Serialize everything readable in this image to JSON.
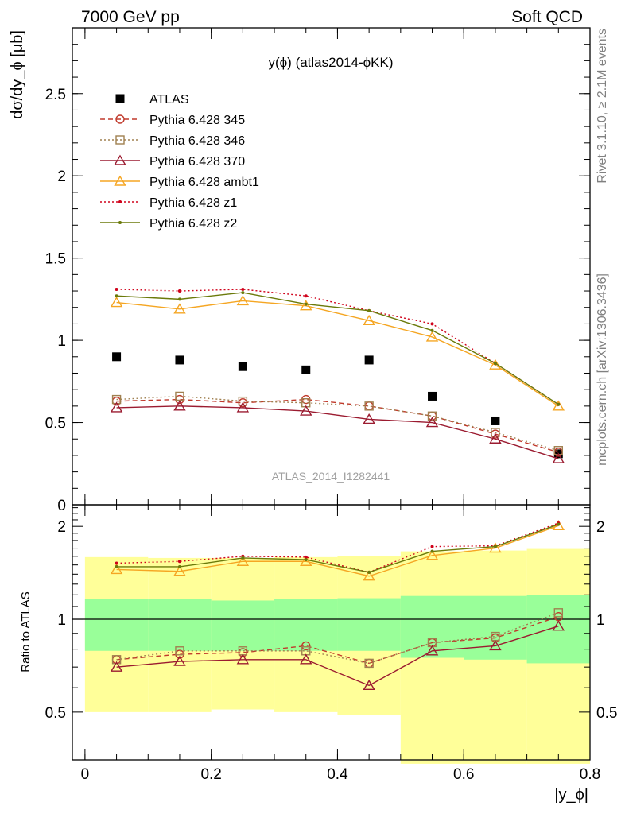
{
  "header": {
    "left": "7000 GeV pp",
    "right": "Soft QCD"
  },
  "side_labels": {
    "rivet": "Rivet 3.1.10, ≥ 2.1M events",
    "mcplots": "mcplots.cern.ch [arXiv:1306.3436]"
  },
  "chart_data": [
    {
      "type": "line",
      "title": "y(ϕ) (atlas2014-ϕKK)",
      "watermark": "ATLAS_2014_I1282441",
      "ylabel": "dσ/dy_ϕ [μb]",
      "xlim": [
        -0.02,
        0.8
      ],
      "ylim": [
        0,
        2.9
      ],
      "yticks": [
        0,
        0.5,
        1,
        1.5,
        2,
        2.5
      ],
      "ytick_labels": [
        "0",
        "0.5",
        "1",
        "1.5",
        "2",
        "2.5"
      ],
      "x": [
        0.05,
        0.15,
        0.25,
        0.35,
        0.45,
        0.55,
        0.65,
        0.75
      ],
      "legend_position": "top-left",
      "series": [
        {
          "name": "ATLAS",
          "color": "#000000",
          "marker": "filled-square",
          "line": "none",
          "values": [
            0.9,
            0.88,
            0.84,
            0.82,
            0.88,
            0.66,
            0.51,
            0.31
          ]
        },
        {
          "name": "Pythia 6.428 345",
          "color": "#c0392b",
          "marker": "open-circle",
          "line": "dashed",
          "values": [
            0.63,
            0.64,
            0.62,
            0.64,
            0.6,
            0.54,
            0.43,
            0.32
          ]
        },
        {
          "name": "Pythia 6.428 346",
          "color": "#a08050",
          "marker": "open-square",
          "line": "dotted",
          "values": [
            0.64,
            0.66,
            0.63,
            0.62,
            0.6,
            0.54,
            0.44,
            0.33
          ]
        },
        {
          "name": "Pythia 6.428 370",
          "color": "#9b1b30",
          "marker": "open-triangle",
          "line": "solid",
          "values": [
            0.59,
            0.6,
            0.59,
            0.57,
            0.52,
            0.5,
            0.4,
            0.28
          ]
        },
        {
          "name": "Pythia 6.428 ambt1",
          "color": "#f5a623",
          "marker": "open-triangle",
          "line": "solid",
          "values": [
            1.23,
            1.19,
            1.24,
            1.21,
            1.12,
            1.02,
            0.85,
            0.6
          ]
        },
        {
          "name": "Pythia 6.428 z1",
          "color": "#d0021b",
          "marker": "dot",
          "line": "dotted",
          "values": [
            1.31,
            1.3,
            1.31,
            1.27,
            1.18,
            1.1,
            0.86,
            0.61
          ]
        },
        {
          "name": "Pythia 6.428 z2",
          "color": "#6b7a0a",
          "marker": "dot",
          "line": "solid",
          "values": [
            1.27,
            1.25,
            1.29,
            1.22,
            1.18,
            1.06,
            0.86,
            0.61
          ]
        }
      ]
    },
    {
      "type": "line",
      "ylabel": "Ratio to ATLAS",
      "xlabel": "|y_ϕ|",
      "xlim": [
        -0.02,
        0.8
      ],
      "ylim": [
        0.35,
        2.35
      ],
      "xticks": [
        0,
        0.2,
        0.4,
        0.6,
        0.8
      ],
      "xtick_labels": [
        "0",
        "0.2",
        "0.4",
        "0.6",
        "0.8"
      ],
      "yticks": [
        0.5,
        1,
        2
      ],
      "ytick_labels": [
        "0.5",
        "1",
        "2"
      ],
      "bin_edges": [
        0.0,
        0.1,
        0.2,
        0.3,
        0.4,
        0.5,
        0.6,
        0.7,
        0.8
      ],
      "band_inner": [
        [
          0.79,
          1.16
        ],
        [
          0.79,
          1.16
        ],
        [
          0.79,
          1.15
        ],
        [
          0.79,
          1.16
        ],
        [
          0.79,
          1.17
        ],
        [
          0.75,
          1.19
        ],
        [
          0.74,
          1.19
        ],
        [
          0.72,
          1.2
        ]
      ],
      "band_outer": [
        [
          0.5,
          1.59
        ],
        [
          0.5,
          1.58
        ],
        [
          0.51,
          1.58
        ],
        [
          0.5,
          1.59
        ],
        [
          0.49,
          1.6
        ],
        [
          0.34,
          1.66
        ],
        [
          0.34,
          1.67
        ],
        [
          0.34,
          1.69
        ]
      ],
      "x": [
        0.05,
        0.15,
        0.25,
        0.35,
        0.45,
        0.55,
        0.65,
        0.75
      ],
      "series": [
        {
          "name": "Pythia 6.428 345",
          "values": [
            0.74,
            0.77,
            0.78,
            0.82,
            0.72,
            0.84,
            0.87,
            1.02
          ]
        },
        {
          "name": "Pythia 6.428 346",
          "values": [
            0.74,
            0.79,
            0.79,
            0.79,
            0.72,
            0.84,
            0.88,
            1.05
          ]
        },
        {
          "name": "Pythia 6.428 370",
          "values": [
            0.7,
            0.73,
            0.74,
            0.74,
            0.61,
            0.79,
            0.82,
            0.95
          ]
        },
        {
          "name": "Pythia 6.428 ambt1",
          "values": [
            1.45,
            1.43,
            1.54,
            1.54,
            1.38,
            1.61,
            1.7,
            2.01
          ]
        },
        {
          "name": "Pythia 6.428 z1",
          "values": [
            1.52,
            1.54,
            1.6,
            1.59,
            1.42,
            1.72,
            1.73,
            2.05
          ]
        },
        {
          "name": "Pythia 6.428 z2",
          "values": [
            1.48,
            1.48,
            1.58,
            1.56,
            1.42,
            1.66,
            1.72,
            2.03
          ]
        }
      ]
    }
  ]
}
